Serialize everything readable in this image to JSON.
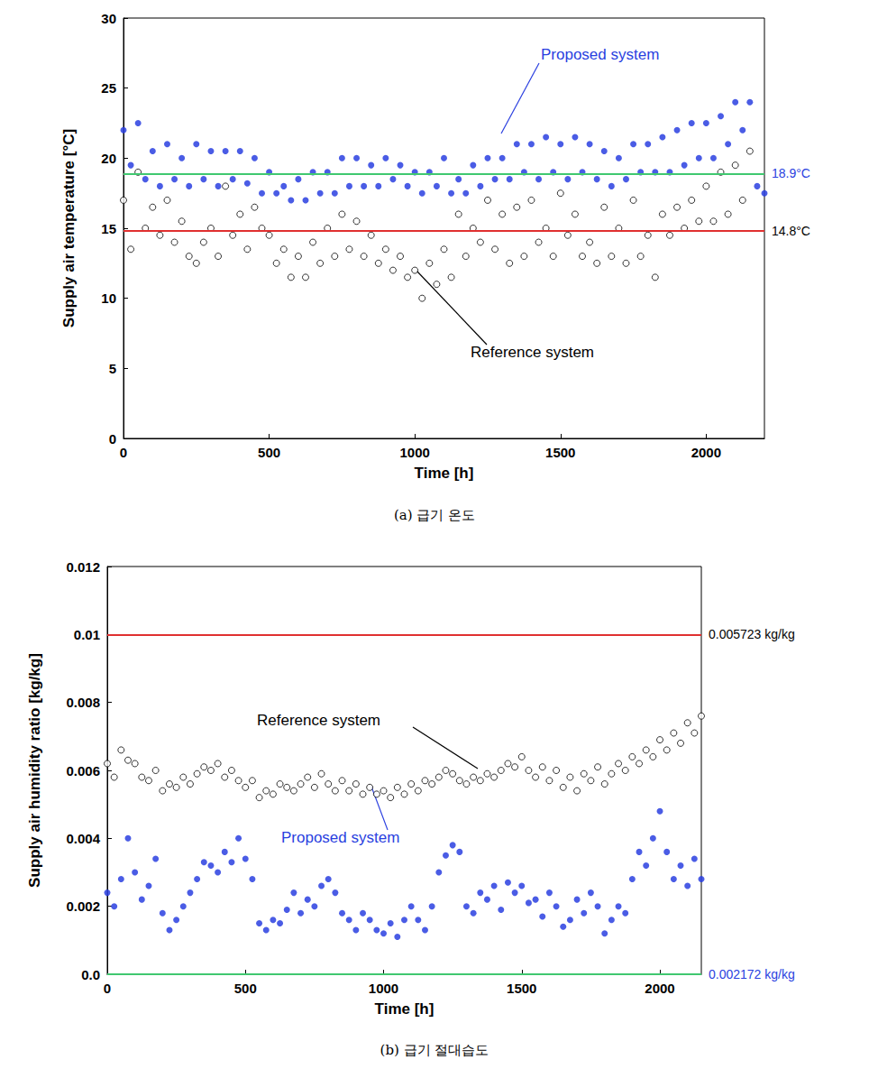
{
  "chart_data": [
    {
      "type": "scatter",
      "title": "(a) 급기 온도",
      "x_label": "Time [h]",
      "y_label": "Supply air temperature [°C]",
      "xlim": [
        0,
        2200
      ],
      "xticks": [
        0,
        500,
        1000,
        1500,
        2000
      ],
      "ylim": [
        0,
        30
      ],
      "yticks": [
        0,
        5,
        10,
        15,
        20,
        25,
        30
      ],
      "grid": false,
      "x": [
        0,
        25,
        50,
        75,
        100,
        125,
        150,
        175,
        200,
        225,
        250,
        275,
        300,
        325,
        350,
        375,
        400,
        425,
        450,
        475,
        500,
        525,
        550,
        575,
        600,
        625,
        650,
        675,
        700,
        725,
        750,
        775,
        800,
        825,
        850,
        875,
        900,
        925,
        950,
        975,
        1000,
        1025,
        1050,
        1075,
        1100,
        1125,
        1150,
        1175,
        1200,
        1225,
        1250,
        1275,
        1300,
        1325,
        1350,
        1375,
        1400,
        1425,
        1450,
        1475,
        1500,
        1525,
        1550,
        1575,
        1600,
        1625,
        1650,
        1675,
        1700,
        1725,
        1750,
        1775,
        1800,
        1825,
        1850,
        1875,
        1900,
        1925,
        1950,
        1975,
        2000,
        2025,
        2050,
        2075,
        2100,
        2125,
        2150,
        2175,
        2200
      ],
      "series": [
        {
          "name": "Proposed system",
          "color": "#2a3fe0",
          "marker": "circle",
          "mean_line": {
            "value": 18.9,
            "label": "18.9°C",
            "color": "#40c870"
          },
          "values": [
            22,
            19.5,
            22.5,
            18.5,
            20.5,
            18,
            21,
            18.5,
            20,
            18,
            21,
            18.5,
            20.5,
            18,
            20.5,
            18.5,
            20.5,
            18.2,
            20,
            17.5,
            19,
            17.5,
            18,
            17,
            18.5,
            17,
            19,
            17.5,
            19,
            17.5,
            20,
            18,
            20,
            18,
            19.5,
            18,
            20,
            18.5,
            19.5,
            18,
            19,
            17.5,
            19,
            18,
            20,
            17.5,
            18.5,
            17.5,
            19.5,
            18,
            20,
            18.5,
            20,
            18.5,
            21,
            19,
            21,
            18.5,
            21.5,
            19,
            21,
            18.5,
            21.5,
            19,
            21,
            18.5,
            20.5,
            18,
            20,
            18.5,
            21,
            19,
            21,
            19,
            21.5,
            19,
            22,
            19.5,
            22.5,
            20,
            22.5,
            20,
            23,
            21,
            24,
            22,
            24,
            18,
            17.5
          ]
        },
        {
          "name": "Reference system",
          "color": "#000000",
          "marker": "open_circle",
          "mean_line": {
            "value": 14.8,
            "label": "14.8°C",
            "color": "#e03030"
          },
          "values": [
            17,
            13.5,
            19,
            15,
            16.5,
            14.5,
            17,
            14,
            15.5,
            13,
            12.5,
            14,
            15,
            13,
            18,
            14.5,
            16,
            13.5,
            16.5,
            15,
            14.5,
            12.5,
            13.5,
            11.5,
            13,
            11.5,
            14,
            12.5,
            15,
            13,
            16,
            13.5,
            15.5,
            13,
            14.5,
            12.5,
            13.5,
            12,
            13,
            11.5,
            12,
            10,
            12.5,
            11,
            13.5,
            11.5,
            16,
            13,
            15,
            14,
            17,
            13.5,
            16,
            12.5,
            16.5,
            13,
            17,
            14,
            15,
            13,
            17.5,
            14.5,
            16,
            13,
            14,
            12.5,
            16.5,
            13,
            15,
            12.5,
            17,
            13,
            14.5,
            11.5,
            16,
            14.5,
            16.5,
            15,
            17,
            15.5,
            18,
            15.5,
            19,
            16,
            19.5,
            17,
            20.5,
            null,
            null
          ]
        }
      ]
    },
    {
      "type": "scatter",
      "title": "(b) 급기 절대습도",
      "x_label": "Time [h]",
      "y_label": "Supply air humidity ratio [kg/kg]",
      "xlim": [
        0,
        2150
      ],
      "xticks": [
        0,
        500,
        1000,
        1500,
        2000
      ],
      "ylim": [
        0,
        0.012
      ],
      "yticks": [
        {
          "value": 0,
          "label": "0.0"
        },
        0.002,
        0.004,
        0.006,
        0.008,
        0.01,
        0.012
      ],
      "grid": false,
      "x": [
        0,
        25,
        50,
        75,
        100,
        125,
        150,
        175,
        200,
        225,
        250,
        275,
        300,
        325,
        350,
        375,
        400,
        425,
        450,
        475,
        500,
        525,
        550,
        575,
        600,
        625,
        650,
        675,
        700,
        725,
        750,
        775,
        800,
        825,
        850,
        875,
        900,
        925,
        950,
        975,
        1000,
        1025,
        1050,
        1075,
        1100,
        1125,
        1150,
        1175,
        1200,
        1225,
        1250,
        1275,
        1300,
        1325,
        1350,
        1375,
        1400,
        1425,
        1450,
        1475,
        1500,
        1525,
        1550,
        1575,
        1600,
        1625,
        1650,
        1675,
        1700,
        1725,
        1750,
        1775,
        1800,
        1825,
        1850,
        1875,
        1900,
        1925,
        1950,
        1975,
        2000,
        2025,
        2050,
        2075,
        2100,
        2125,
        2150
      ],
      "series": [
        {
          "name": "Proposed system",
          "color": "#2a3fe0",
          "marker": "circle",
          "mean_line": {
            "value": 0.002172,
            "label": "0.002172 kg/kg",
            "color": "#40c870"
          },
          "values": [
            0.0024,
            0.002,
            0.0028,
            0.004,
            0.003,
            0.0022,
            0.0026,
            0.0034,
            0.0018,
            0.0013,
            0.0016,
            0.002,
            0.0024,
            0.0028,
            0.0033,
            0.0032,
            0.003,
            0.0036,
            0.0033,
            0.004,
            0.0034,
            0.0028,
            0.0015,
            0.0013,
            0.0016,
            0.0015,
            0.0019,
            0.0024,
            0.0018,
            0.0022,
            0.002,
            0.0026,
            0.0028,
            0.0024,
            0.0018,
            0.0016,
            0.0013,
            0.0018,
            0.0016,
            0.0013,
            0.0012,
            0.0015,
            0.0011,
            0.0016,
            0.002,
            0.0016,
            0.0013,
            0.002,
            0.003,
            0.0035,
            0.0038,
            0.0036,
            0.002,
            0.0018,
            0.0024,
            0.0022,
            0.0026,
            0.0019,
            0.0027,
            0.0024,
            0.0026,
            0.0021,
            0.0022,
            0.0017,
            0.0024,
            0.002,
            0.0014,
            0.0016,
            0.0022,
            0.0018,
            0.0024,
            0.002,
            0.0012,
            0.0016,
            0.002,
            0.0018,
            0.0028,
            0.0036,
            0.0032,
            0.004,
            0.0048,
            0.0036,
            0.0028,
            0.0032,
            0.0026,
            0.0034,
            0.0028
          ]
        },
        {
          "name": "Reference system",
          "color": "#000000",
          "marker": "open_circle",
          "mean_line": {
            "value": 0.005723,
            "label": "0.005723 kg/kg",
            "color": "#e03030"
          },
          "values": [
            0.0062,
            0.0058,
            0.0066,
            0.0063,
            0.0062,
            0.0058,
            0.0057,
            0.006,
            0.0054,
            0.0056,
            0.0055,
            0.0058,
            0.0056,
            0.0059,
            0.0061,
            0.006,
            0.0062,
            0.0058,
            0.006,
            0.0057,
            0.0055,
            0.0057,
            0.0052,
            0.0054,
            0.0053,
            0.0056,
            0.0055,
            0.0054,
            0.0056,
            0.0058,
            0.0055,
            0.0059,
            0.0056,
            0.0054,
            0.0057,
            0.0054,
            0.0056,
            0.0053,
            0.0055,
            0.0053,
            0.0054,
            0.0052,
            0.0055,
            0.0053,
            0.0056,
            0.0054,
            0.0057,
            0.0056,
            0.0058,
            0.006,
            0.0059,
            0.0057,
            0.0056,
            0.0058,
            0.0057,
            0.0059,
            0.0058,
            0.006,
            0.0062,
            0.0061,
            0.0064,
            0.006,
            0.0058,
            0.0061,
            0.0057,
            0.006,
            0.0055,
            0.0058,
            0.0054,
            0.0059,
            0.0057,
            0.0061,
            0.0056,
            0.0059,
            0.0062,
            0.006,
            0.0064,
            0.0062,
            0.0066,
            0.0064,
            0.0069,
            0.0066,
            0.0071,
            0.0068,
            0.0074,
            0.0071,
            0.0076
          ]
        }
      ]
    }
  ]
}
